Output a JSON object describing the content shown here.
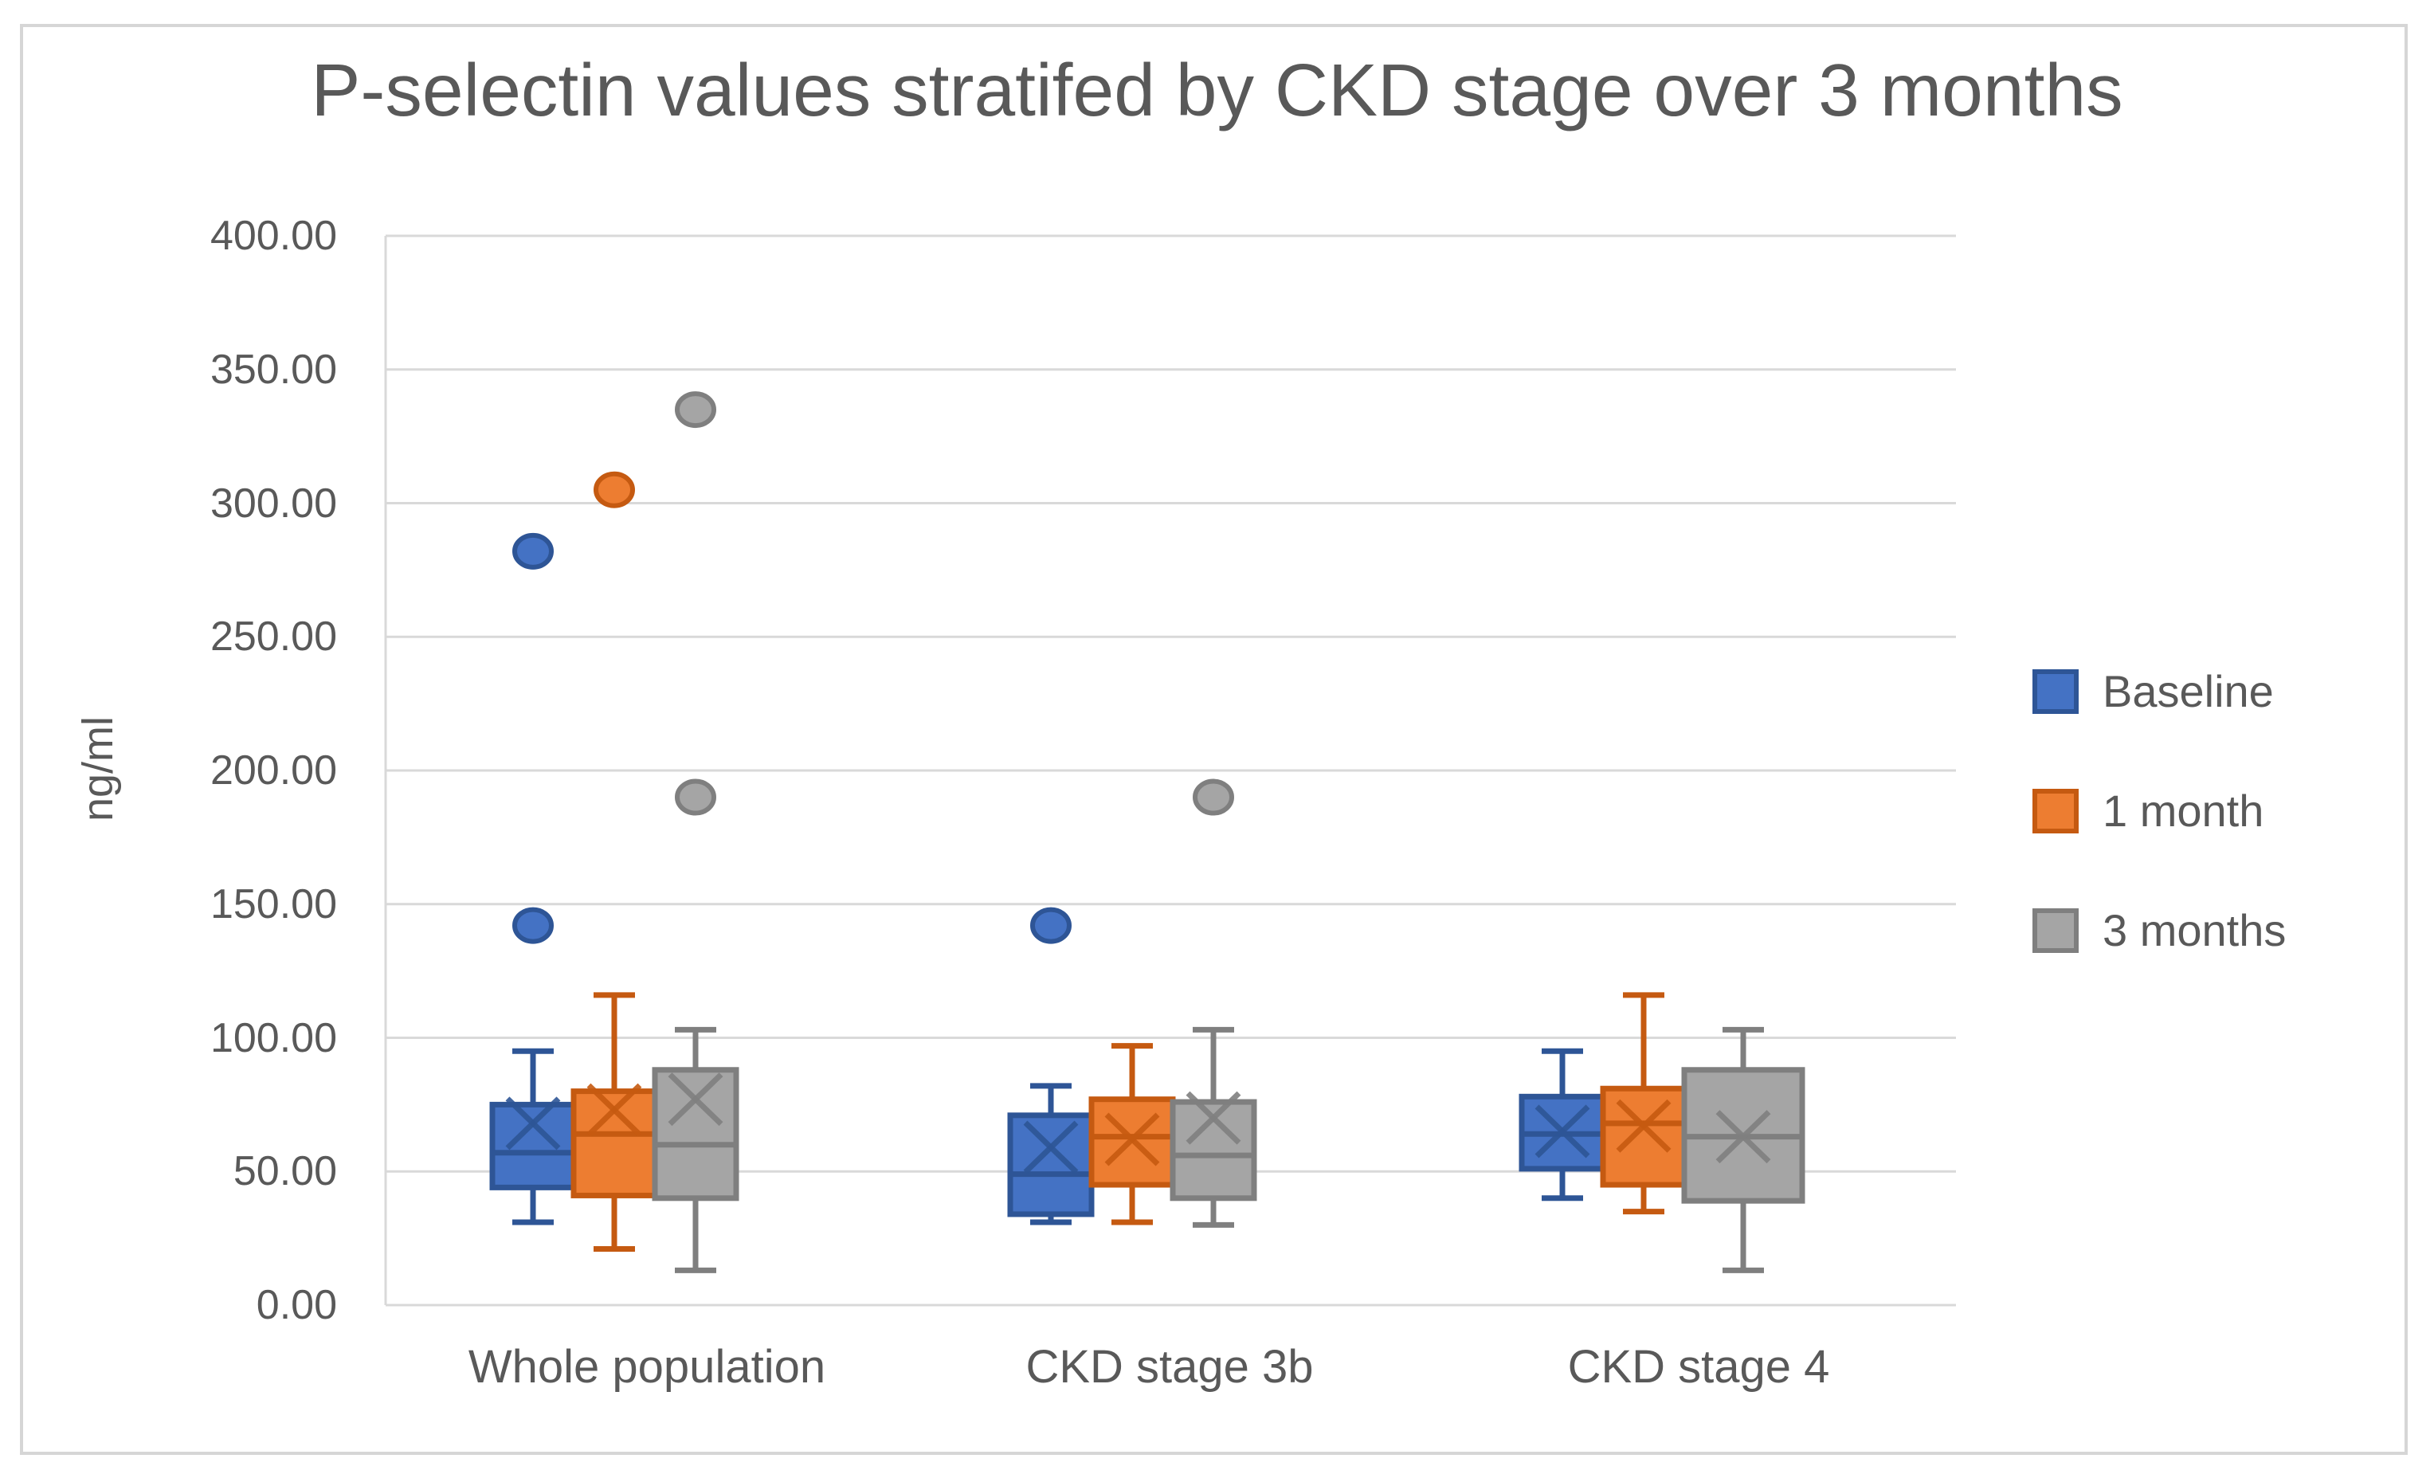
{
  "page": {
    "background": "#ffffff",
    "frame_border_color": "#d6d6d6",
    "text_color": "#595959"
  },
  "chart_data": {
    "type": "boxplot",
    "title": "P-selectin values stratifed by CKD stage over 3 months",
    "ylabel": "ng/ml",
    "xlabel": "",
    "ylim": [
      0,
      400
    ],
    "ytick_step": 50,
    "y_ticks": [
      "0.00",
      "50.00",
      "100.00",
      "150.00",
      "200.00",
      "250.00",
      "300.00",
      "350.00",
      "400.00"
    ],
    "grid": true,
    "grid_color": "#d9d9d9",
    "axis_line_color": "#d9d9d9",
    "legend_position": "right",
    "categories": [
      "Whole population",
      "CKD stage 3b",
      "CKD stage 4"
    ],
    "series": [
      {
        "name": "Baseline",
        "fill": "#4472C4",
        "stroke": "#2E5596",
        "boxes": [
          {
            "category": "Whole population",
            "whisker_low": 31,
            "q1": 44,
            "median": 57,
            "mean": 68,
            "q3": 75,
            "whisker_high": 95,
            "outliers": [
              142,
              282
            ]
          },
          {
            "category": "CKD stage 3b",
            "whisker_low": 31,
            "q1": 34,
            "median": 49,
            "mean": 59,
            "q3": 71,
            "whisker_high": 82,
            "outliers": [
              142
            ]
          },
          {
            "category": "CKD stage 4",
            "whisker_low": 40,
            "q1": 51,
            "median": 64,
            "mean": 65,
            "q3": 78,
            "whisker_high": 95,
            "outliers": []
          }
        ]
      },
      {
        "name": "1 month",
        "fill": "#ED7D31",
        "stroke": "#C55A11",
        "boxes": [
          {
            "category": "Whole population",
            "whisker_low": 21,
            "q1": 41,
            "median": 64,
            "mean": 73,
            "q3": 80,
            "whisker_high": 116,
            "outliers": [
              305
            ]
          },
          {
            "category": "CKD stage 3b",
            "whisker_low": 31,
            "q1": 45,
            "median": 63,
            "mean": 62,
            "q3": 77,
            "whisker_high": 97,
            "outliers": []
          },
          {
            "category": "CKD stage 4",
            "whisker_low": 35,
            "q1": 45,
            "median": 68,
            "mean": 67,
            "q3": 81,
            "whisker_high": 116,
            "outliers": []
          }
        ]
      },
      {
        "name": "3 months",
        "fill": "#A5A5A5",
        "stroke": "#7F7F7F",
        "boxes": [
          {
            "category": "Whole population",
            "whisker_low": 13,
            "q1": 40,
            "median": 60,
            "mean": 77,
            "q3": 88,
            "whisker_high": 103,
            "outliers": [
              190,
              335
            ]
          },
          {
            "category": "CKD stage 3b",
            "whisker_low": 30,
            "q1": 40,
            "median": 56,
            "mean": 70,
            "q3": 76,
            "whisker_high": 103,
            "outliers": [
              190
            ]
          },
          {
            "category": "CKD stage 4",
            "whisker_low": 13,
            "q1": 39,
            "median": 63,
            "mean": 63,
            "q3": 88,
            "whisker_high": 103,
            "outliers": []
          }
        ]
      }
    ]
  }
}
